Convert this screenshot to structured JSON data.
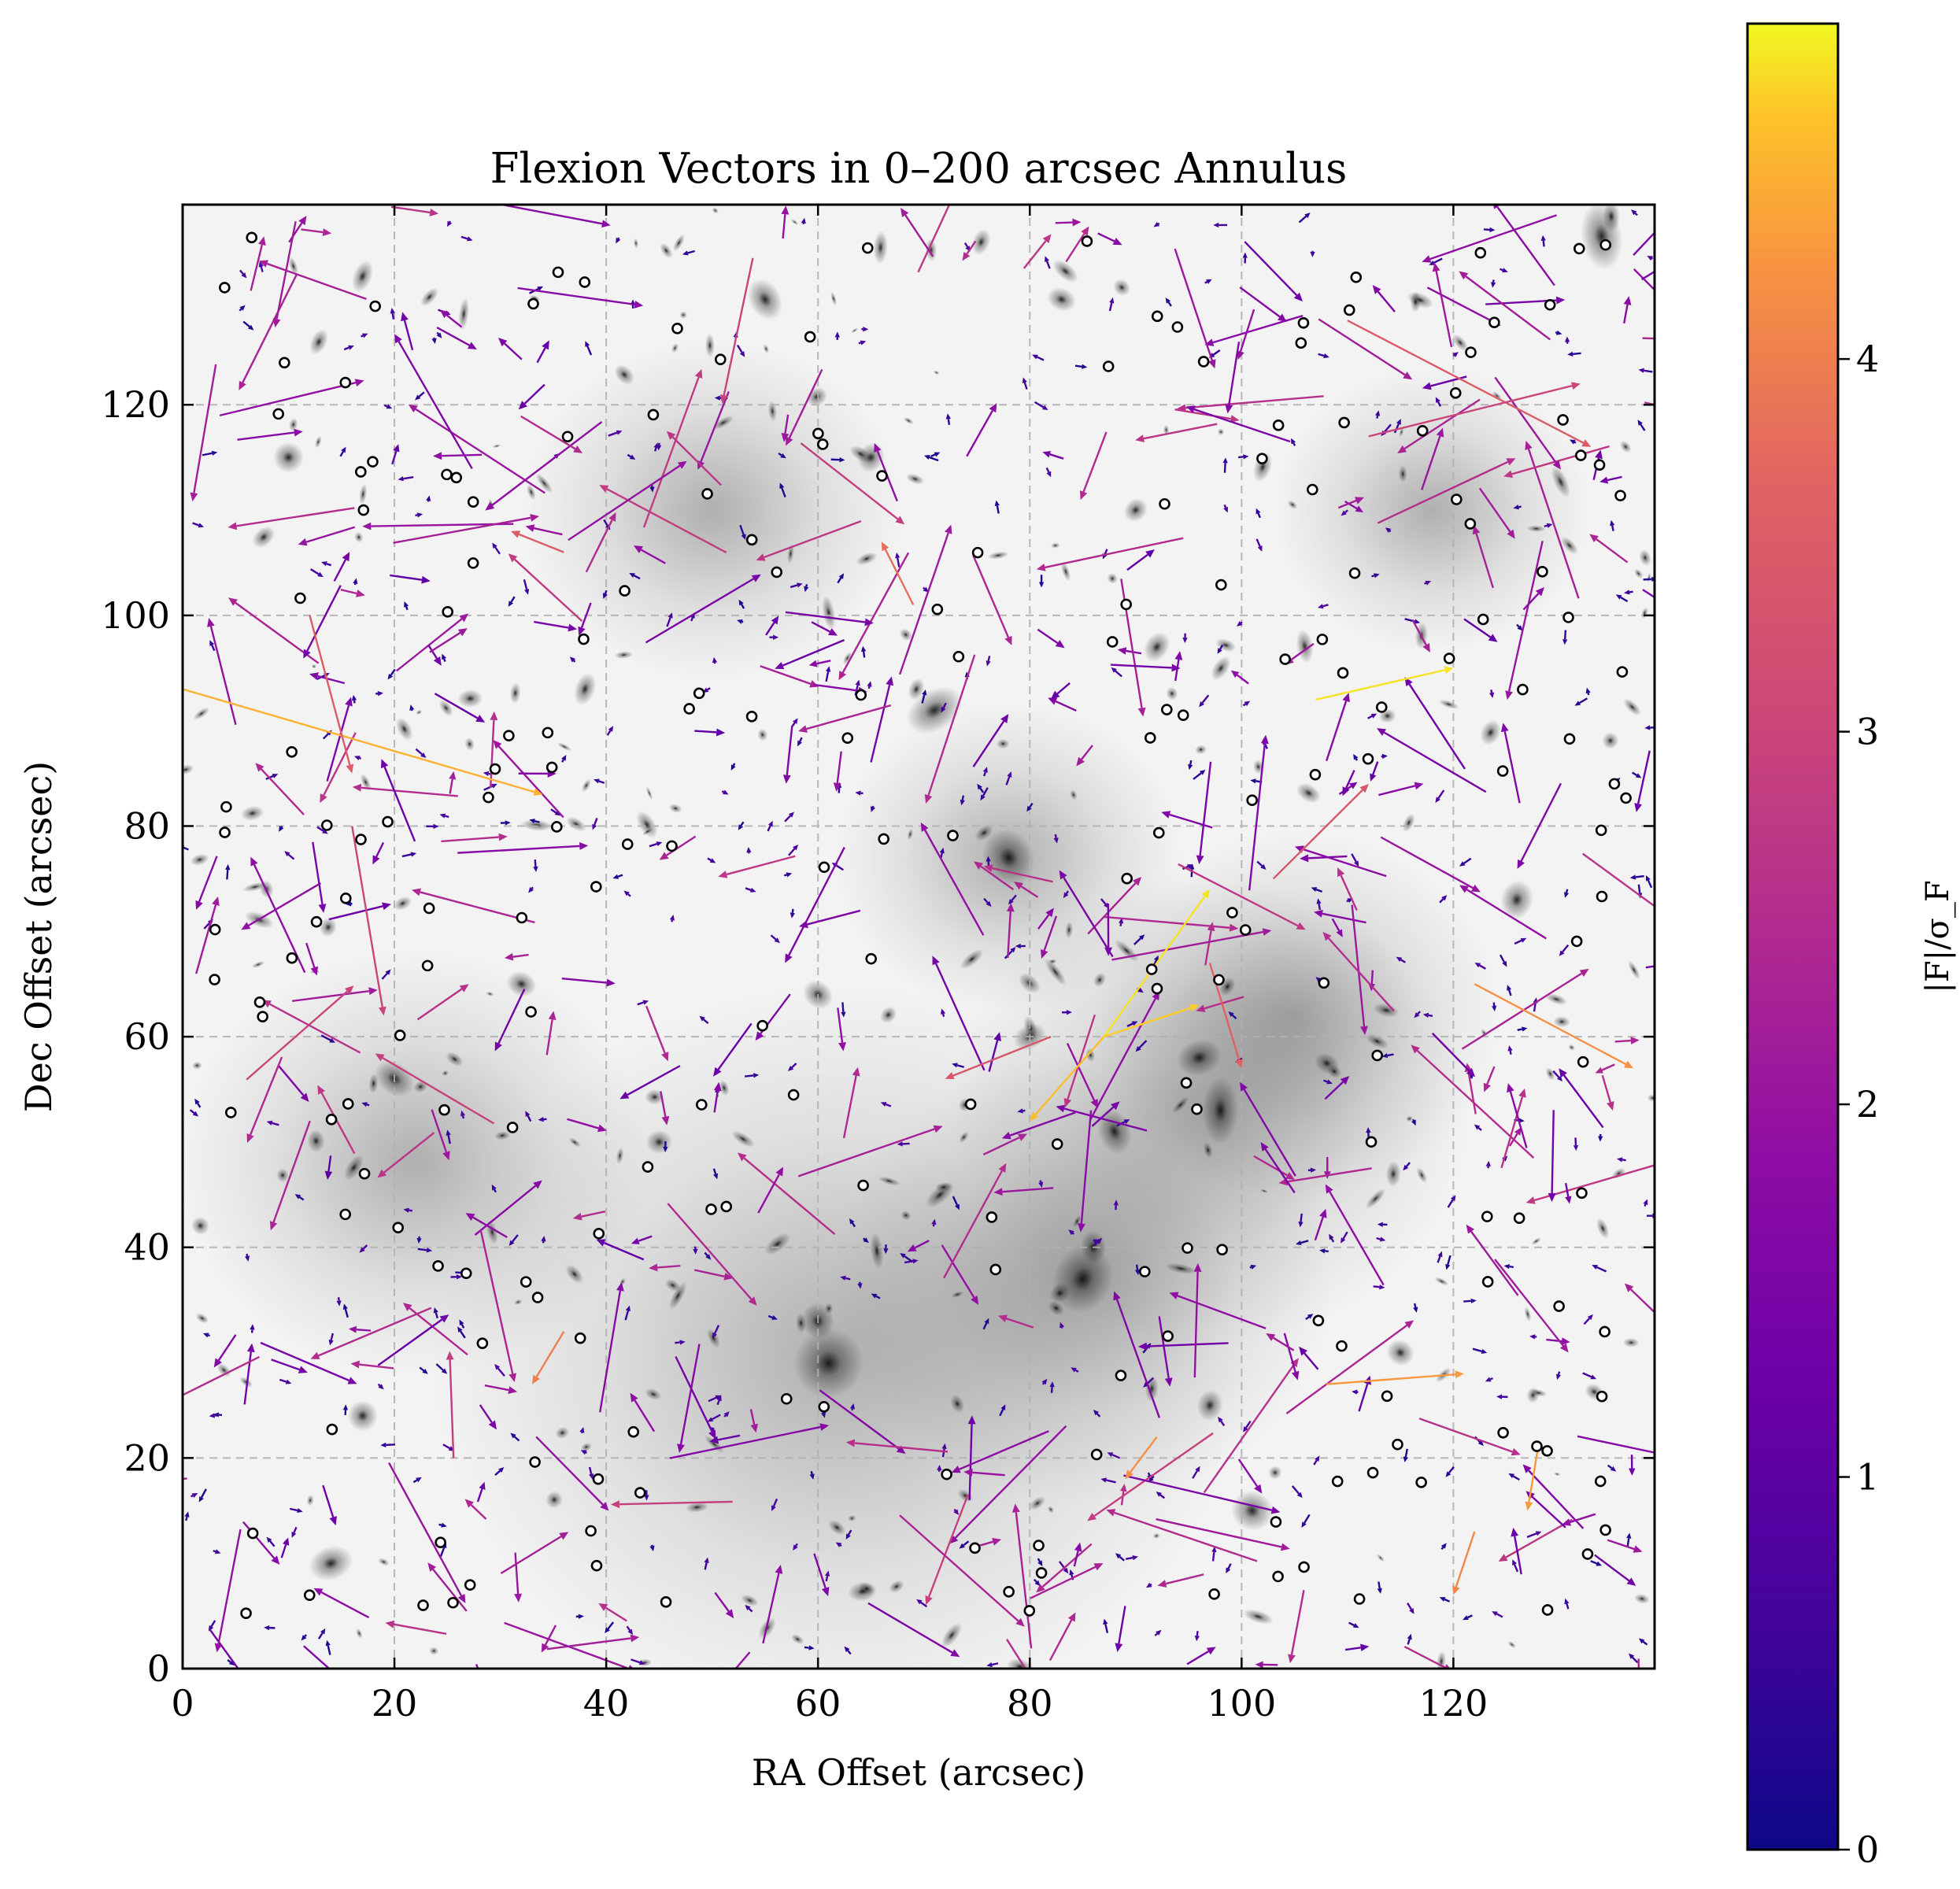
{
  "chart_data": {
    "type": "quiver",
    "title": "Flexion Vectors in 0–200 arcsec Annulus",
    "xlabel": "RA Offset (arcsec)",
    "ylabel": "Dec Offset (arcsec)",
    "xlim": [
      0,
      139
    ],
    "ylim": [
      0,
      139
    ],
    "xticks": [
      0,
      20,
      40,
      60,
      80,
      100,
      120
    ],
    "yticks": [
      0,
      20,
      40,
      60,
      80,
      100,
      120
    ],
    "grid": true,
    "background": "grayscale galaxy cluster image",
    "colorbar": {
      "label": "|F|/σ_F",
      "colormap": "plasma",
      "range": [
        0,
        4.9
      ],
      "ticks": [
        0,
        1,
        2,
        3,
        4
      ]
    },
    "highlighted_vectors": [
      {
        "x": 0,
        "y": 93,
        "dx": 34,
        "dy": -10,
        "mag": 4.5
      },
      {
        "x": 87,
        "y": 60,
        "dx": 10,
        "dy": 14,
        "mag": 4.8
      },
      {
        "x": 87,
        "y": 60,
        "dx": -7,
        "dy": -8,
        "mag": 4.6
      },
      {
        "x": 87,
        "y": 60,
        "dx": 9,
        "dy": 3,
        "mag": 4.7
      },
      {
        "x": 107,
        "y": 92,
        "dx": 13,
        "dy": 3,
        "mag": 4.8
      },
      {
        "x": 108,
        "y": 27,
        "dx": 13,
        "dy": 1,
        "mag": 4.3
      },
      {
        "x": 110,
        "y": 128,
        "dx": 23,
        "dy": -12,
        "mag": 3.5
      },
      {
        "x": 112,
        "y": 117,
        "dx": 20,
        "dy": 5,
        "mag": 3.0
      },
      {
        "x": 122,
        "y": 65,
        "dx": 15,
        "dy": -8,
        "mag": 4.2
      },
      {
        "x": 103,
        "y": 75,
        "dx": 9,
        "dy": 9,
        "mag": 3.4
      },
      {
        "x": 97,
        "y": 67,
        "dx": 3,
        "dy": -10,
        "mag": 3.6
      },
      {
        "x": 12,
        "y": 100,
        "dx": 4,
        "dy": -15,
        "mag": 3.5
      },
      {
        "x": 36,
        "y": 106,
        "dx": -5,
        "dy": 2,
        "mag": 3.5
      },
      {
        "x": 82,
        "y": 60,
        "dx": -10,
        "dy": -4,
        "mag": 3.4
      },
      {
        "x": 92,
        "y": 22,
        "dx": -3,
        "dy": -4,
        "mag": 4.2
      },
      {
        "x": 128,
        "y": 21,
        "dx": -1,
        "dy": -6,
        "mag": 4.3
      },
      {
        "x": 122,
        "y": 13,
        "dx": -2,
        "dy": -6,
        "mag": 4.1
      },
      {
        "x": 36,
        "y": 32,
        "dx": -3,
        "dy": -5,
        "mag": 4.0
      },
      {
        "x": 16,
        "y": 80,
        "dx": 3,
        "dy": -18,
        "mag": 3.0
      },
      {
        "x": 69,
        "y": 101,
        "dx": -3,
        "dy": 6,
        "mag": 3.8
      }
    ],
    "n_vectors_approx": 900,
    "n_marked_sources_approx": 220
  }
}
